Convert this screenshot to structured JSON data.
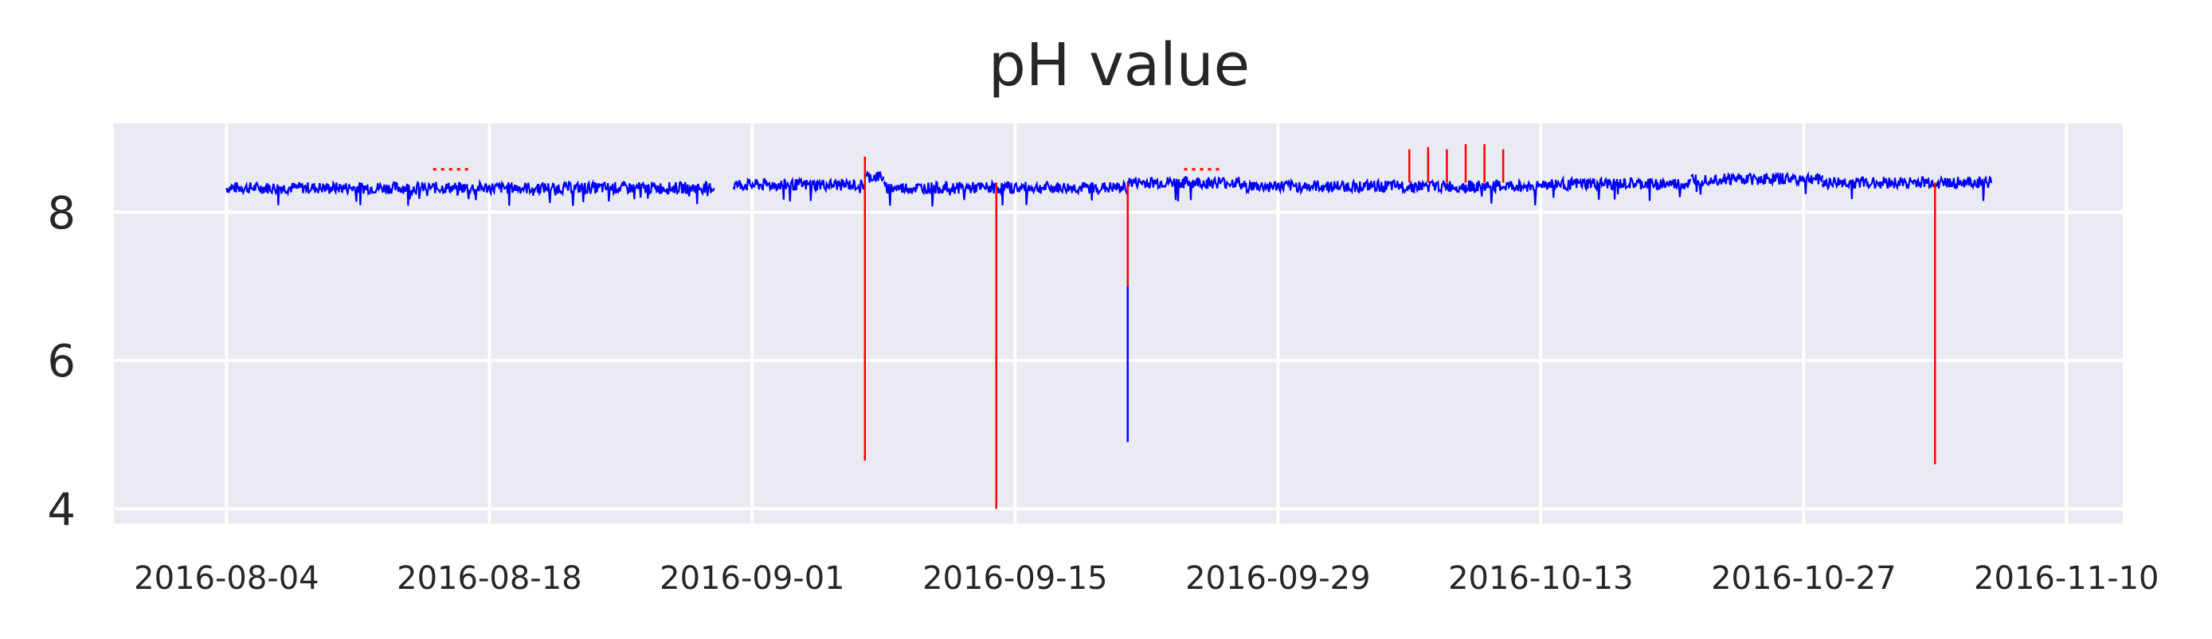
{
  "chart_data": {
    "type": "line",
    "title": "pH value",
    "xlabel": "",
    "ylabel": "",
    "x_ticks": [
      "2016-08-04",
      "2016-08-18",
      "2016-09-01",
      "2016-09-15",
      "2016-09-29",
      "2016-10-13",
      "2016-10-27",
      "2016-11-10"
    ],
    "y_ticks": [
      4,
      6,
      8
    ],
    "xlim": [
      "2016-07-29",
      "2016-11-13"
    ],
    "ylim": [
      3.8,
      9.2
    ],
    "grid": true,
    "background": "#eaeaf2",
    "grid_color": "#ffffff",
    "series": [
      {
        "color": "#0000ff",
        "baseline": [
          {
            "from": "2016-08-04",
            "to": "2016-08-30",
            "value": 8.33
          },
          {
            "from": "2016-08-31",
            "to": "2016-09-07",
            "value": 8.37
          },
          {
            "from": "2016-09-07",
            "to": "2016-09-08",
            "value": 8.48
          },
          {
            "from": "2016-09-08",
            "to": "2016-09-21",
            "value": 8.33
          },
          {
            "from": "2016-09-21",
            "to": "2016-09-27",
            "value": 8.4
          },
          {
            "from": "2016-09-27",
            "to": "2016-10-13",
            "value": 8.35
          },
          {
            "from": "2016-10-13",
            "to": "2016-10-21",
            "value": 8.38
          },
          {
            "from": "2016-10-21",
            "to": "2016-10-28",
            "value": 8.45
          },
          {
            "from": "2016-10-28",
            "to": "2016-11-06",
            "value": 8.4
          }
        ],
        "spikes": [
          {
            "x": "2016-09-21",
            "y": 4.9
          }
        ]
      },
      {
        "color": "#ff0000",
        "spikes": [
          {
            "x": "2016-09-07",
            "y": 4.65,
            "top": 8.75
          },
          {
            "x": "2016-09-14",
            "y": 4.0,
            "top": 8.4
          },
          {
            "x": "2016-09-21",
            "y": 7.0,
            "top": 8.4
          },
          {
            "x": "2016-11-03",
            "y": 4.6,
            "top": 8.4
          },
          {
            "x": "2016-10-06",
            "y": 8.85,
            "top": 8.4
          },
          {
            "x": "2016-10-07",
            "y": 8.88,
            "top": 8.4
          },
          {
            "x": "2016-10-08",
            "y": 8.85,
            "top": 8.4
          },
          {
            "x": "2016-10-09",
            "y": 8.92,
            "top": 8.4
          },
          {
            "x": "2016-10-10",
            "y": 8.92,
            "top": 8.4
          },
          {
            "x": "2016-10-11",
            "y": 8.85,
            "top": 8.4
          }
        ],
        "dotted": [
          {
            "from": "2016-08-15",
            "to": "2016-08-17",
            "value": 8.58
          },
          {
            "from": "2016-09-24",
            "to": "2016-09-26",
            "value": 8.58
          }
        ]
      }
    ]
  }
}
